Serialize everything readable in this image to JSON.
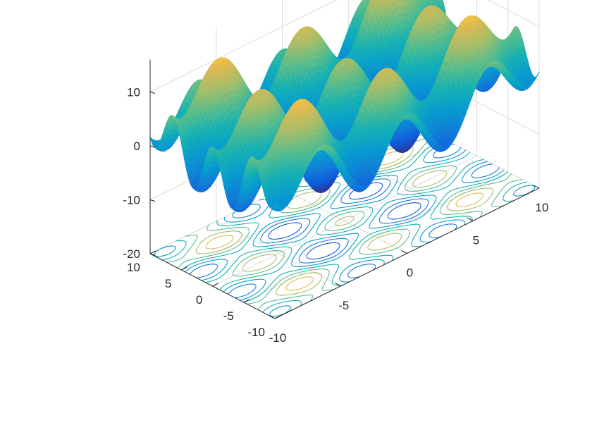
{
  "chart_data": {
    "type": "surface3d",
    "title": "",
    "xlabel": "",
    "ylabel": "",
    "zlabel": "",
    "function": "z = 5*(cos(x) + cos(y)) + 0.05*(x^2 + y^2)",
    "x_range": [
      -10,
      10
    ],
    "y_range": [
      -10,
      10
    ],
    "z_range": [
      -20,
      16
    ],
    "grid": true,
    "colormap": "parula",
    "contour_projection": "base",
    "contour_levels": [
      -9,
      -6,
      -3,
      0,
      3,
      6,
      9,
      12
    ],
    "x_ticks": [
      -10,
      -5,
      0,
      5,
      10
    ],
    "y_ticks": [
      -10,
      -5,
      0,
      5,
      10
    ],
    "z_ticks": [
      -20,
      -10,
      0,
      10
    ],
    "x_tick_labels": [
      "-10",
      "-5",
      "0",
      "5",
      "10"
    ],
    "y_tick_labels": [
      "-10",
      "-5",
      "0",
      "5",
      "10"
    ],
    "z_tick_labels": [
      "-20",
      "-10",
      "0",
      "10"
    ],
    "colors": {
      "background": "#ffffff",
      "axis": "#262626",
      "grid": "#dcdcdc"
    }
  }
}
